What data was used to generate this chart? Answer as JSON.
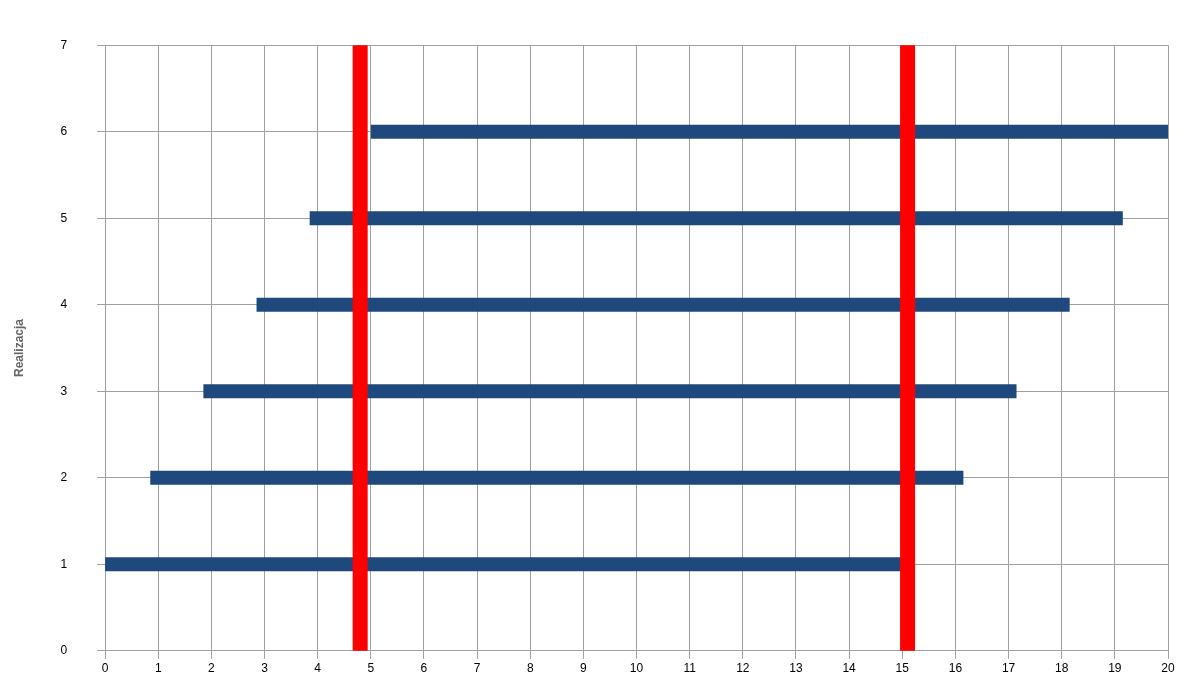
{
  "chart_data": {
    "type": "line",
    "ylabel": "Realizacja",
    "xlim": [
      0,
      20
    ],
    "xticks": [
      0,
      1,
      2,
      3,
      4,
      5,
      6,
      7,
      8,
      9,
      10,
      11,
      12,
      13,
      14,
      15,
      16,
      17,
      18,
      19,
      20
    ],
    "ylim": [
      0,
      7
    ],
    "yticks": [
      0,
      1,
      2,
      3,
      4,
      5,
      6,
      7
    ],
    "grid": true,
    "legend": false,
    "marker": "none",
    "line_style": "solid",
    "series": [
      {
        "color": "#1f497d",
        "x": [
          0,
          15
        ],
        "values": [
          1,
          1
        ]
      },
      {
        "color": "#1f497d",
        "x": [
          0.85,
          16.15
        ],
        "values": [
          2,
          2
        ]
      },
      {
        "color": "#1f497d",
        "x": [
          1.85,
          17.15
        ],
        "values": [
          3,
          3
        ]
      },
      {
        "color": "#1f497d",
        "x": [
          2.85,
          18.15
        ],
        "values": [
          4,
          4
        ]
      },
      {
        "color": "#1f497d",
        "x": [
          3.85,
          19.15
        ],
        "values": [
          5,
          5
        ]
      },
      {
        "color": "#1f497d",
        "x": [
          5,
          20
        ],
        "values": [
          6,
          6
        ]
      }
    ],
    "ref_lines": [
      {
        "axis": "x",
        "value": 4.8,
        "color": "#ff0000",
        "line_style": "solid"
      },
      {
        "axis": "x",
        "value": 15.1,
        "color": "#ff0000",
        "line_style": "solid"
      }
    ]
  }
}
